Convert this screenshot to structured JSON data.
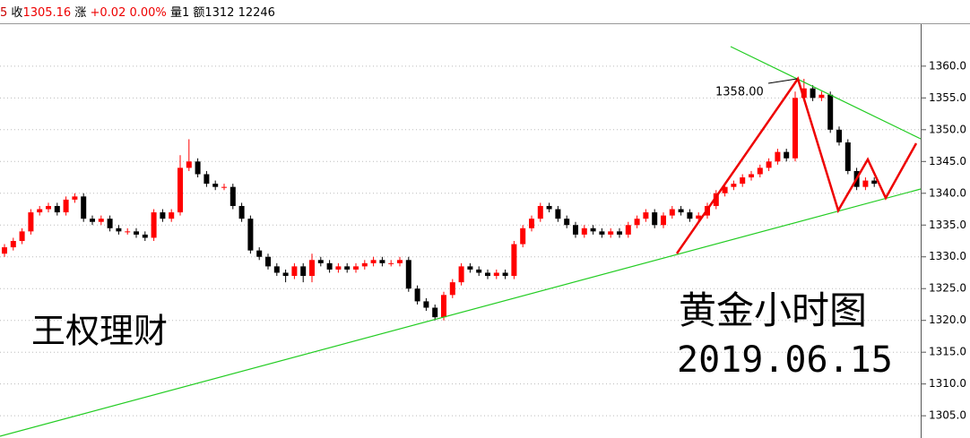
{
  "header": {
    "prefix": "5",
    "close_label": "收",
    "close": "1305.16",
    "change_label": "涨",
    "change": "+0.02",
    "change_pct": "0.00%",
    "volume": "量1",
    "amount": "额1312",
    "extra": "12246"
  },
  "chart_data": {
    "type": "candlestick",
    "title": "黄金小时图",
    "subtitle": "2019.06.15",
    "watermark": "王权理财",
    "peak_label": "1358.00",
    "up_color": "#ff0000",
    "down_color": "#000000",
    "grid": true,
    "ylim": [
      1301.5,
      1366.6
    ],
    "yticks": [
      {
        "value": 1305,
        "label": "1305.0"
      },
      {
        "value": 1310,
        "label": "1310.0"
      },
      {
        "value": 1315,
        "label": "1315.0"
      },
      {
        "value": 1320,
        "label": "1320.0"
      },
      {
        "value": 1325,
        "label": "1325.0"
      },
      {
        "value": 1330,
        "label": "1330.0"
      },
      {
        "value": 1335,
        "label": "1335.0"
      },
      {
        "value": 1340,
        "label": "1340.0"
      },
      {
        "value": 1345,
        "label": "1345.0"
      },
      {
        "value": 1350,
        "label": "1350.0"
      },
      {
        "value": 1355,
        "label": "1355.0"
      },
      {
        "value": 1360,
        "label": "1360.0"
      }
    ],
    "open": [
      1330.5,
      1331.5,
      1332.5,
      1334,
      1337,
      1337.5,
      1338,
      1337,
      1339,
      1339.5,
      1336,
      1335.5,
      1336,
      1334.5,
      1334,
      1334,
      1333.5,
      1333,
      1337,
      1336,
      1337,
      1344,
      1345,
      1343,
      1341.5,
      1341,
      1341,
      1338,
      1336,
      1331,
      1330,
      1328.5,
      1327.5,
      1327,
      1328.5,
      1327,
      1329.5,
      1329,
      1328,
      1328.5,
      1328,
      1328.5,
      1329,
      1329.5,
      1329,
      1329,
      1329.5,
      1325,
      1323,
      1322,
      1320.5,
      1324,
      1326,
      1328.5,
      1328,
      1327.5,
      1327,
      1327.5,
      1327,
      1332,
      1334.5,
      1336,
      1338,
      1337.5,
      1336,
      1335,
      1333.5,
      1334.5,
      1334,
      1333.5,
      1334,
      1333.5,
      1335,
      1336,
      1337,
      1335,
      1336.5,
      1337.5,
      1337,
      1336,
      1336.5,
      1338,
      1340,
      1341,
      1341.5,
      1342.5,
      1343,
      1344,
      1345,
      1346.5,
      1345.5,
      1355,
      1356.5,
      1355,
      1355.5,
      1350,
      1348,
      1343.5,
      1341,
      1342
    ],
    "high": [
      1332,
      1333,
      1334.5,
      1337.5,
      1338,
      1338.5,
      1338.5,
      1339.5,
      1340,
      1340,
      1336.5,
      1336.5,
      1336.5,
      1335,
      1334.5,
      1334.5,
      1334,
      1337.5,
      1337.5,
      1337.5,
      1346,
      1348.5,
      1345.5,
      1343.5,
      1342,
      1341.5,
      1341.5,
      1338.5,
      1336.5,
      1331.5,
      1330.5,
      1329,
      1328,
      1329,
      1329,
      1330.5,
      1330,
      1329.5,
      1329,
      1329,
      1329,
      1329.5,
      1330,
      1330,
      1329.5,
      1330,
      1330,
      1325.5,
      1323.5,
      1322.5,
      1324.5,
      1326.5,
      1329,
      1329,
      1328.5,
      1328,
      1328,
      1328,
      1332.5,
      1335,
      1336.5,
      1338.5,
      1338.5,
      1338,
      1336.5,
      1335.5,
      1335,
      1335,
      1334.5,
      1334.5,
      1334.5,
      1335.5,
      1336.5,
      1337.5,
      1337.5,
      1337,
      1338,
      1338,
      1337.5,
      1337,
      1338.5,
      1340.5,
      1341.5,
      1342,
      1343,
      1343.5,
      1344.5,
      1345.5,
      1347,
      1347,
      1356,
      1358,
      1357,
      1356,
      1356,
      1350.5,
      1348.5,
      1344,
      1342.5,
      1342.5
    ],
    "low": [
      1330,
      1331,
      1332,
      1333.5,
      1336.5,
      1337,
      1336.5,
      1336.5,
      1338.5,
      1335.5,
      1335,
      1335,
      1334,
      1333.5,
      1333.5,
      1333,
      1332.5,
      1332.5,
      1335.5,
      1335.5,
      1336.5,
      1343.5,
      1342.5,
      1341,
      1340.5,
      1340.5,
      1337.5,
      1335.5,
      1330.5,
      1329.5,
      1328,
      1327,
      1326,
      1326.5,
      1326,
      1326,
      1328.5,
      1327.5,
      1327.5,
      1327.5,
      1327.5,
      1328,
      1328.5,
      1328.5,
      1328.5,
      1328.5,
      1324.5,
      1322.5,
      1321.5,
      1320,
      1320,
      1323.5,
      1325.5,
      1327.5,
      1327,
      1326.5,
      1326.5,
      1326.5,
      1326.5,
      1331.5,
      1334,
      1335.5,
      1337,
      1335.5,
      1334.5,
      1333,
      1333,
      1333.5,
      1333,
      1333,
      1333,
      1333,
      1334.5,
      1335.5,
      1334.5,
      1334.5,
      1336,
      1336.5,
      1335.5,
      1335.5,
      1336,
      1337.5,
      1339.5,
      1340.5,
      1341,
      1342,
      1342.5,
      1343.5,
      1344.5,
      1345,
      1345,
      1354.5,
      1354.5,
      1354.5,
      1349.5,
      1347.5,
      1343,
      1340.5,
      1340.5,
      1341
    ],
    "close": [
      1331.5,
      1332.5,
      1334,
      1337,
      1337.5,
      1338,
      1337,
      1339,
      1339.5,
      1336,
      1335.5,
      1336,
      1334.5,
      1334,
      1334,
      1333.5,
      1333,
      1337,
      1336,
      1337,
      1344,
      1345,
      1343,
      1341.5,
      1341,
      1341,
      1338,
      1336,
      1331,
      1330,
      1328.5,
      1327.5,
      1327,
      1328.5,
      1327,
      1329.5,
      1329,
      1328,
      1328.5,
      1328,
      1328.5,
      1329,
      1329.5,
      1329,
      1329,
      1329.5,
      1325,
      1323,
      1322,
      1320.5,
      1324,
      1326,
      1328.5,
      1328,
      1327.5,
      1327,
      1327.5,
      1327,
      1332,
      1334.5,
      1336,
      1338,
      1337.5,
      1336,
      1335,
      1333.5,
      1334.5,
      1334,
      1333.5,
      1334,
      1333.5,
      1335,
      1336,
      1337,
      1335,
      1336.5,
      1337.5,
      1337,
      1336,
      1336.5,
      1338,
      1340,
      1341,
      1341.5,
      1342.5,
      1343,
      1344,
      1345,
      1346.5,
      1345.5,
      1355,
      1356.5,
      1355,
      1355.5,
      1350,
      1348,
      1343.5,
      1341,
      1342,
      1341.5
    ]
  }
}
